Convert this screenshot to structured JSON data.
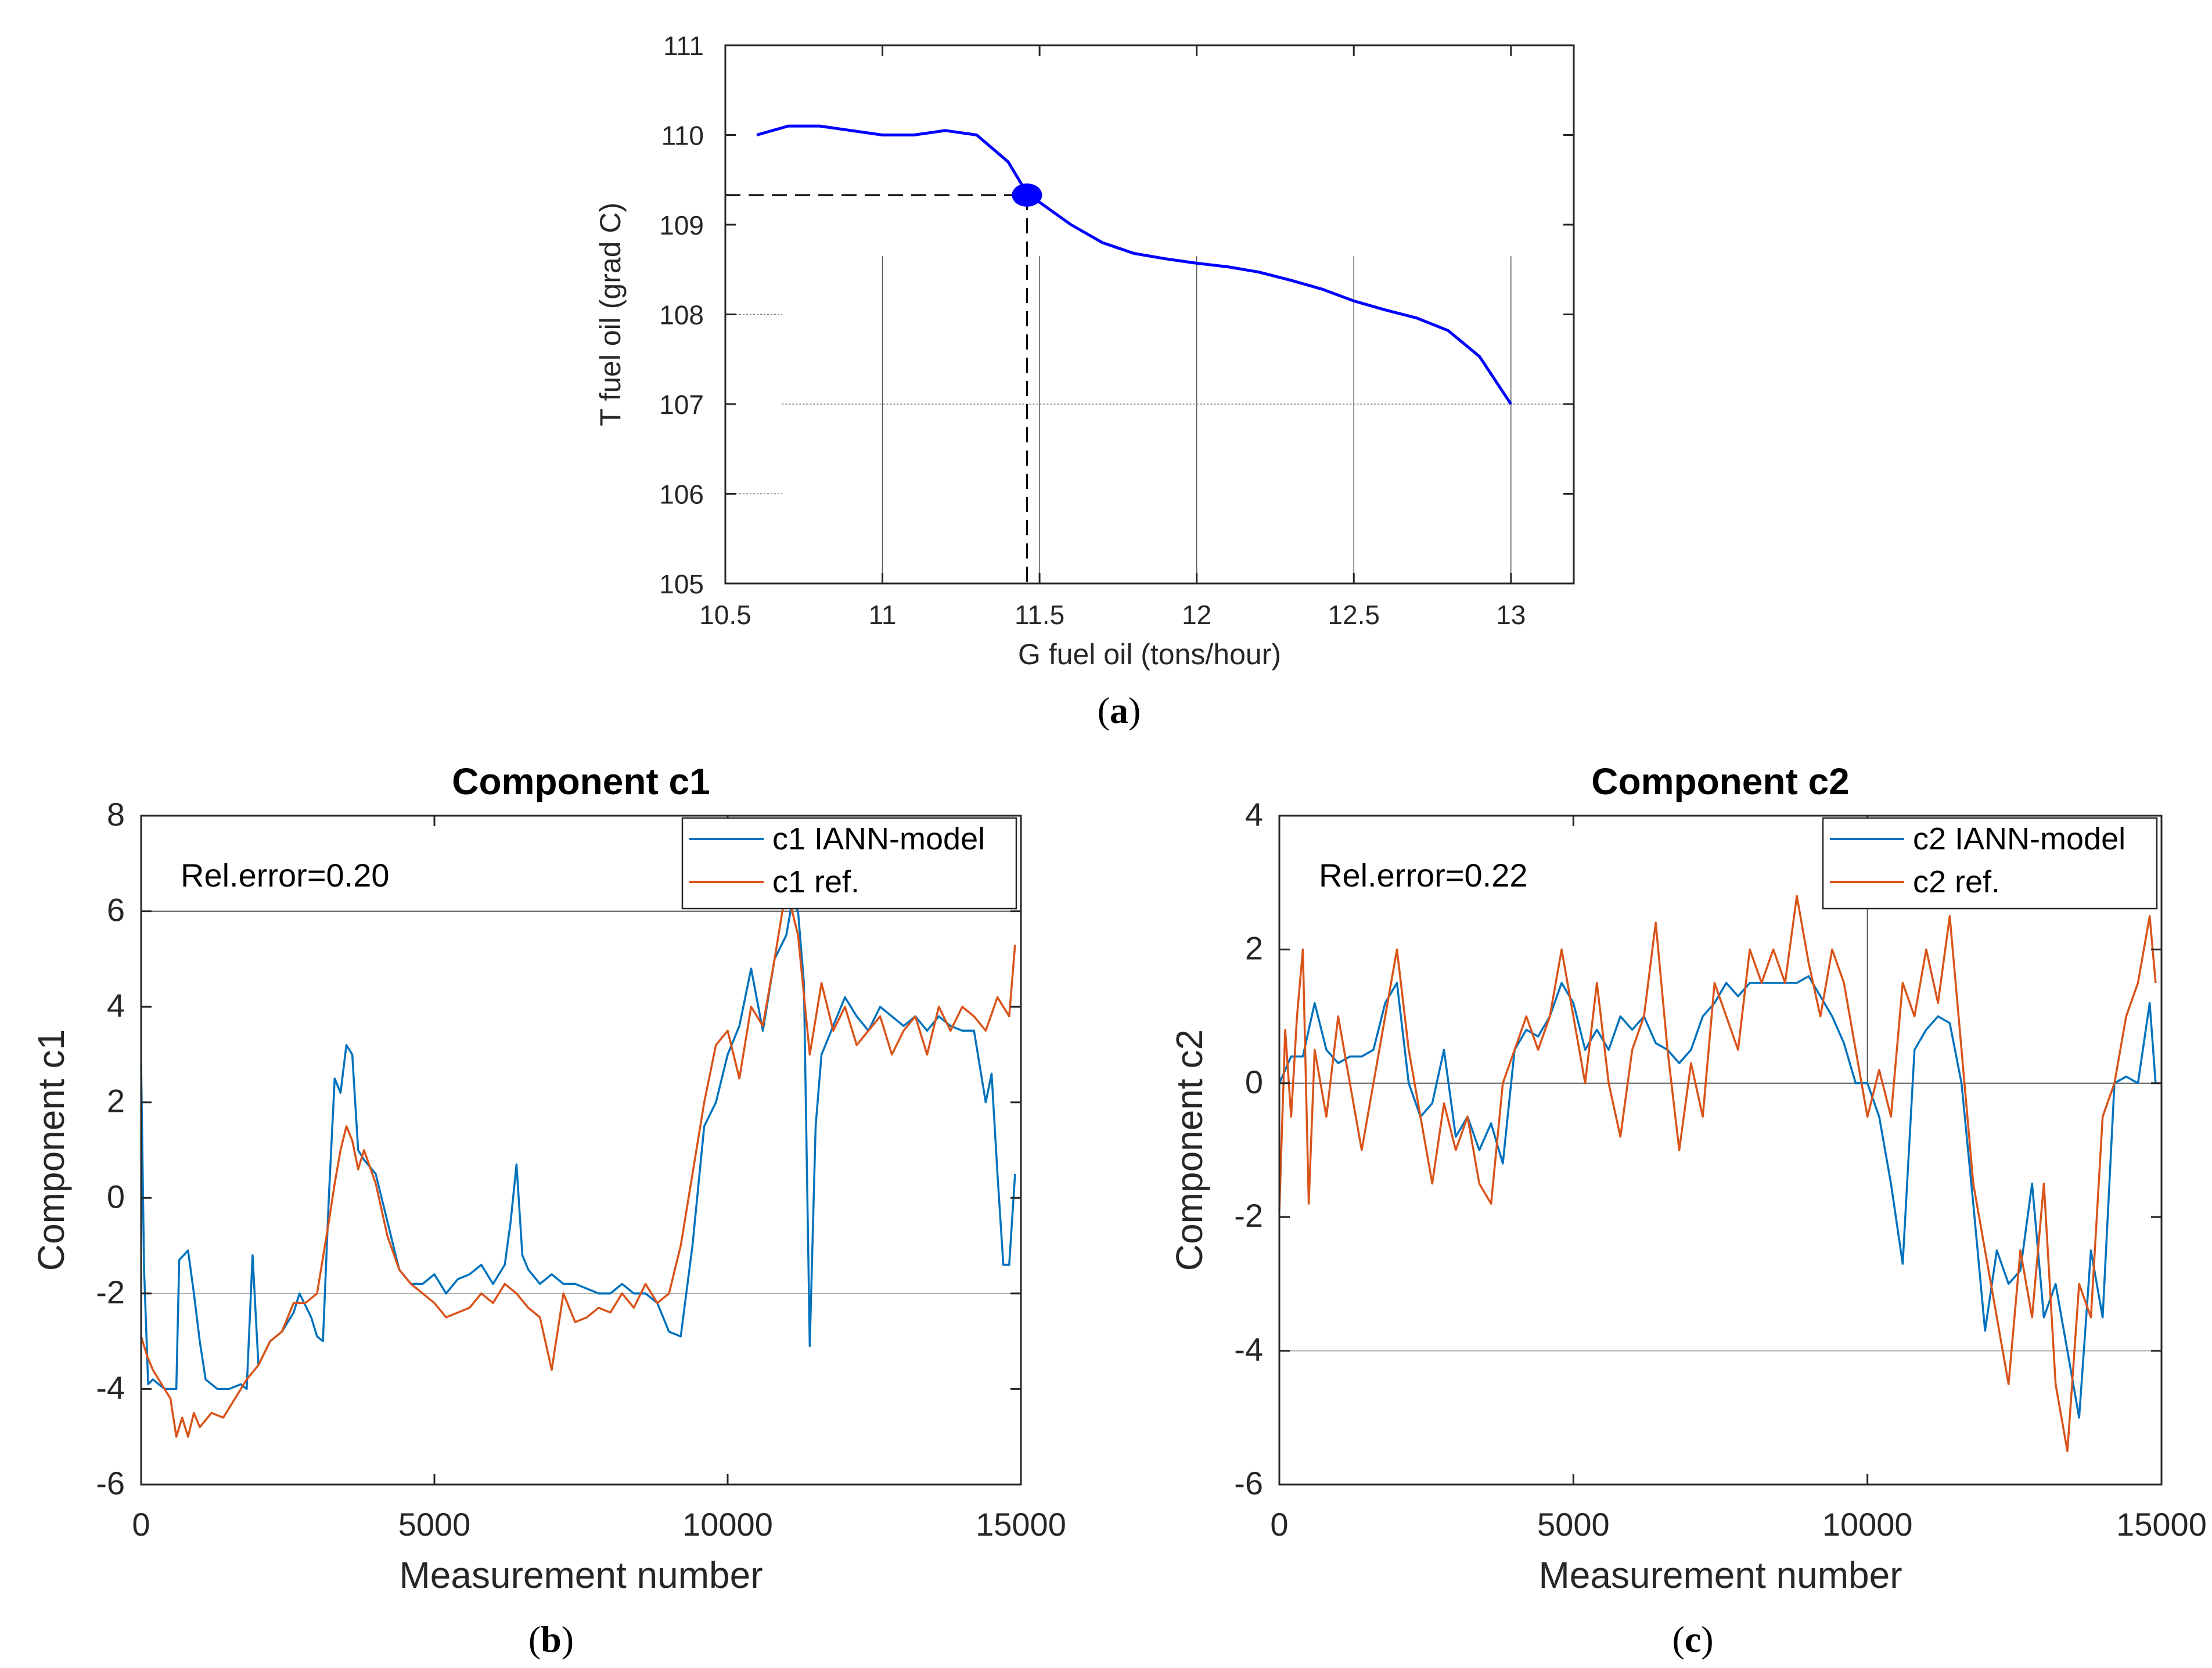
{
  "colors": {
    "blue_a": "#0000ff",
    "blue": "#0072bd",
    "orange": "#d95319",
    "axis": "#262626",
    "grid": "#b0b0b0"
  },
  "chart_data": [
    {
      "id": "a",
      "type": "line",
      "sublabel": "a",
      "title": "",
      "xlabel": "G fuel oil (tons/hour)",
      "ylabel": "T fuel oil (grad C)",
      "xlim": [
        10.5,
        13.2
      ],
      "ylim": [
        105,
        111
      ],
      "xticks": [
        10.5,
        11,
        11.5,
        12,
        12.5,
        13
      ],
      "xtick_labels": [
        "10.5",
        "11",
        "11.5",
        "12",
        "12.5",
        "13"
      ],
      "yticks": [
        105,
        106,
        107,
        108,
        109,
        110,
        111
      ],
      "ytick_labels": [
        "105",
        "106",
        "107",
        "108",
        "109",
        "110",
        "111"
      ],
      "series": [
        {
          "name": "T fuel oil",
          "color": "#0000ff",
          "x": [
            10.6,
            10.7,
            10.8,
            10.9,
            11.0,
            11.1,
            11.2,
            11.3,
            11.4,
            11.46,
            11.5,
            11.6,
            11.7,
            11.8,
            11.9,
            12.0,
            12.1,
            12.2,
            12.3,
            12.4,
            12.5,
            12.6,
            12.7,
            12.8,
            12.9,
            13.0
          ],
          "y": [
            110.0,
            110.1,
            110.1,
            110.05,
            110.0,
            110.0,
            110.05,
            110.0,
            109.7,
            109.35,
            109.25,
            109.0,
            108.8,
            108.68,
            108.62,
            108.57,
            108.53,
            108.47,
            108.38,
            108.28,
            108.15,
            108.05,
            107.96,
            107.82,
            107.53,
            107.0
          ]
        }
      ],
      "marker": {
        "x": 11.46,
        "y": 109.33
      },
      "reference_lines": {
        "x": 11.46,
        "y": 109.33
      }
    },
    {
      "id": "b",
      "type": "line",
      "sublabel": "b",
      "title": "Component c1",
      "xlabel": "Measurement number",
      "ylabel": "Component c1",
      "xlim": [
        0,
        15000
      ],
      "ylim": [
        -6,
        8
      ],
      "xticks": [
        0,
        5000,
        10000,
        15000
      ],
      "xtick_labels": [
        "0",
        "5000",
        "10000",
        "15000"
      ],
      "yticks": [
        -6,
        -4,
        -2,
        0,
        2,
        4,
        6,
        8
      ],
      "ytick_labels": [
        "-6",
        "-4",
        "-2",
        "0",
        "2",
        "4",
        "6",
        "8"
      ],
      "annotation": "Rel.error=0.20",
      "legend_position": "top-right",
      "series": [
        {
          "name": "c1 IANN-model",
          "color": "#0072bd",
          "x": [
            0,
            50,
            120,
            200,
            400,
            600,
            650,
            800,
            900,
            1000,
            1100,
            1300,
            1500,
            1700,
            1800,
            1900,
            2000,
            2200,
            2400,
            2600,
            2700,
            2900,
            3000,
            3100,
            3200,
            3300,
            3400,
            3500,
            3600,
            3700,
            3800,
            4000,
            4200,
            4400,
            4600,
            4800,
            5000,
            5200,
            5400,
            5600,
            5800,
            6000,
            6200,
            6300,
            6400,
            6500,
            6600,
            6800,
            7000,
            7200,
            7400,
            7600,
            7800,
            8000,
            8200,
            8400,
            8600,
            8800,
            9000,
            9200,
            9400,
            9600,
            9800,
            10000,
            10200,
            10400,
            10600,
            10800,
            11000,
            11100,
            11200,
            11300,
            11400,
            11500,
            11600,
            11800,
            12000,
            12200,
            12400,
            12600,
            12800,
            13000,
            13200,
            13400,
            13600,
            13800,
            14000,
            14200,
            14400,
            14500,
            14600,
            14700,
            14800,
            14900
          ],
          "y": [
            2.8,
            -1.5,
            -3.9,
            -3.8,
            -4.0,
            -4.0,
            -1.3,
            -1.1,
            -2.0,
            -3.0,
            -3.8,
            -4.0,
            -4.0,
            -3.9,
            -4.0,
            -1.2,
            -3.5,
            -3.0,
            -2.8,
            -2.4,
            -2.0,
            -2.5,
            -2.9,
            -3.0,
            0.0,
            2.5,
            2.2,
            3.2,
            3.0,
            1.0,
            0.8,
            0.5,
            -0.5,
            -1.5,
            -1.8,
            -1.8,
            -1.6,
            -2.0,
            -1.7,
            -1.6,
            -1.4,
            -1.8,
            -1.4,
            -0.5,
            0.7,
            -1.2,
            -1.5,
            -1.8,
            -1.6,
            -1.8,
            -1.8,
            -1.9,
            -2.0,
            -2.0,
            -1.8,
            -2.0,
            -2.0,
            -2.2,
            -2.8,
            -2.9,
            -1.0,
            1.5,
            2.0,
            3.0,
            3.6,
            4.8,
            3.5,
            5.0,
            5.5,
            6.2,
            6.0,
            4.5,
            -3.1,
            1.5,
            3.0,
            3.6,
            4.2,
            3.8,
            3.5,
            4.0,
            3.8,
            3.6,
            3.8,
            3.5,
            3.8,
            3.6,
            3.5,
            3.5,
            2.0,
            2.6,
            0.5,
            -1.4,
            -1.4,
            0.5
          ]
        },
        {
          "name": "c1 ref.",
          "color": "#d95319",
          "x": [
            0,
            100,
            200,
            300,
            400,
            500,
            600,
            700,
            800,
            900,
            1000,
            1200,
            1400,
            1600,
            1800,
            2000,
            2200,
            2400,
            2600,
            2800,
            3000,
            3200,
            3300,
            3400,
            3500,
            3600,
            3700,
            3800,
            4000,
            4200,
            4400,
            4600,
            4800,
            5000,
            5200,
            5400,
            5600,
            5800,
            6000,
            6200,
            6400,
            6600,
            6800,
            7000,
            7200,
            7400,
            7600,
            7800,
            8000,
            8200,
            8400,
            8600,
            8800,
            9000,
            9200,
            9400,
            9600,
            9800,
            10000,
            10200,
            10400,
            10600,
            10800,
            11000,
            11200,
            11400,
            11600,
            11800,
            12000,
            12200,
            12400,
            12600,
            12800,
            13000,
            13200,
            13400,
            13600,
            13800,
            14000,
            14200,
            14400,
            14600,
            14800,
            14900
          ],
          "y": [
            -2.9,
            -3.3,
            -3.6,
            -3.8,
            -4.0,
            -4.2,
            -5.0,
            -4.6,
            -5.0,
            -4.5,
            -4.8,
            -4.5,
            -4.6,
            -4.2,
            -3.8,
            -3.5,
            -3.0,
            -2.8,
            -2.2,
            -2.2,
            -2.0,
            -0.5,
            0.3,
            1.0,
            1.5,
            1.2,
            0.6,
            1.0,
            0.3,
            -0.8,
            -1.5,
            -1.8,
            -2.0,
            -2.2,
            -2.5,
            -2.4,
            -2.3,
            -2.0,
            -2.2,
            -1.8,
            -2.0,
            -2.3,
            -2.5,
            -3.6,
            -2.0,
            -2.6,
            -2.5,
            -2.3,
            -2.4,
            -2.0,
            -2.3,
            -1.8,
            -2.2,
            -2.0,
            -1.0,
            0.5,
            2.0,
            3.2,
            3.5,
            2.5,
            4.0,
            3.6,
            5.0,
            6.5,
            5.5,
            3.0,
            4.5,
            3.5,
            4.0,
            3.2,
            3.5,
            3.8,
            3.0,
            3.5,
            3.8,
            3.0,
            4.0,
            3.5,
            4.0,
            3.8,
            3.5,
            4.2,
            3.8,
            5.3
          ]
        }
      ]
    },
    {
      "id": "c",
      "type": "line",
      "sublabel": "c",
      "title": "Component c2",
      "xlabel": "Measurement number",
      "ylabel": "Component c2",
      "xlim": [
        0,
        15000
      ],
      "ylim": [
        -6,
        4
      ],
      "xticks": [
        0,
        5000,
        10000,
        15000
      ],
      "xtick_labels": [
        "0",
        "5000",
        "10000",
        "15000"
      ],
      "yticks": [
        -6,
        -4,
        -2,
        0,
        2,
        4
      ],
      "ytick_labels": [
        "-6",
        "-4",
        "-2",
        "0",
        "2",
        "4"
      ],
      "annotation": "Rel.error=0.22",
      "legend_position": "top-right",
      "series": [
        {
          "name": "c2 IANN-model",
          "color": "#0072bd",
          "x": [
            0,
            200,
            400,
            600,
            800,
            1000,
            1200,
            1400,
            1600,
            1800,
            2000,
            2200,
            2400,
            2600,
            2800,
            3000,
            3200,
            3400,
            3600,
            3800,
            4000,
            4200,
            4400,
            4600,
            4800,
            5000,
            5200,
            5400,
            5600,
            5800,
            6000,
            6200,
            6400,
            6600,
            6800,
            7000,
            7200,
            7400,
            7600,
            7800,
            8000,
            8200,
            8400,
            8600,
            8800,
            9000,
            9200,
            9400,
            9600,
            9800,
            10000,
            10200,
            10400,
            10600,
            10800,
            11000,
            11200,
            11400,
            11600,
            11800,
            12000,
            12200,
            12400,
            12600,
            12800,
            13000,
            13200,
            13400,
            13600,
            13800,
            14000,
            14200,
            14400,
            14600,
            14800,
            14900
          ],
          "y": [
            0.0,
            0.4,
            0.4,
            1.2,
            0.5,
            0.3,
            0.4,
            0.4,
            0.5,
            1.2,
            1.5,
            0.0,
            -0.5,
            -0.3,
            0.5,
            -0.8,
            -0.5,
            -1.0,
            -0.6,
            -1.2,
            0.5,
            0.8,
            0.7,
            1.0,
            1.5,
            1.2,
            0.5,
            0.8,
            0.5,
            1.0,
            0.8,
            1.0,
            0.6,
            0.5,
            0.3,
            0.5,
            1.0,
            1.2,
            1.5,
            1.3,
            1.5,
            1.5,
            1.5,
            1.5,
            1.5,
            1.6,
            1.3,
            1.0,
            0.6,
            0.0,
            0.0,
            -0.5,
            -1.5,
            -2.7,
            0.5,
            0.8,
            1.0,
            0.9,
            0.0,
            -1.8,
            -3.7,
            -2.5,
            -3.0,
            -2.8,
            -1.5,
            -3.5,
            -3.0,
            -4.0,
            -5.0,
            -2.5,
            -3.5,
            0.0,
            0.1,
            0.0,
            1.2,
            0.0
          ]
        },
        {
          "name": "c2 ref.",
          "color": "#d95319",
          "x": [
            0,
            100,
            200,
            300,
            400,
            500,
            600,
            800,
            1000,
            1200,
            1400,
            1600,
            1800,
            2000,
            2200,
            2400,
            2600,
            2800,
            3000,
            3200,
            3400,
            3600,
            3800,
            4000,
            4200,
            4400,
            4600,
            4800,
            5000,
            5200,
            5400,
            5600,
            5800,
            6000,
            6200,
            6400,
            6600,
            6800,
            7000,
            7200,
            7400,
            7600,
            7800,
            8000,
            8200,
            8400,
            8600,
            8800,
            9000,
            9200,
            9400,
            9600,
            9800,
            10000,
            10200,
            10400,
            10600,
            10800,
            11000,
            11200,
            11400,
            11600,
            11800,
            12000,
            12200,
            12400,
            12600,
            12800,
            13000,
            13200,
            13400,
            13600,
            13800,
            14000,
            14200,
            14400,
            14600,
            14800,
            14900
          ],
          "y": [
            -1.9,
            0.8,
            -0.5,
            1.0,
            2.0,
            -1.8,
            0.5,
            -0.5,
            1.0,
            0.0,
            -1.0,
            0.0,
            1.0,
            2.0,
            0.5,
            -0.5,
            -1.5,
            -0.3,
            -1.0,
            -0.5,
            -1.5,
            -1.8,
            0.0,
            0.5,
            1.0,
            0.5,
            1.0,
            2.0,
            1.0,
            0.0,
            1.5,
            0.0,
            -0.8,
            0.5,
            1.0,
            2.4,
            0.5,
            -1.0,
            0.3,
            -0.5,
            1.5,
            1.0,
            0.5,
            2.0,
            1.5,
            2.0,
            1.5,
            2.8,
            1.8,
            1.0,
            2.0,
            1.5,
            0.5,
            -0.5,
            0.2,
            -0.5,
            1.5,
            1.0,
            2.0,
            1.2,
            2.5,
            0.5,
            -1.5,
            -2.5,
            -3.5,
            -4.5,
            -2.5,
            -3.5,
            -1.5,
            -4.5,
            -5.5,
            -3.0,
            -3.5,
            -0.5,
            0.0,
            1.0,
            1.5,
            2.5,
            1.5
          ]
        }
      ]
    }
  ]
}
